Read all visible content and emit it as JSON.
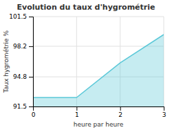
{
  "chart_data": {
    "type": "area",
    "title": "Evolution du taux d'hygrométrie",
    "x_label": "heure par heure",
    "y_label": "Taux hygrométrie %",
    "x": [
      0,
      1,
      2,
      3
    ],
    "values": [
      92.5,
      92.5,
      96.35,
      99.5
    ],
    "color": "#5bc8d8",
    "xlim": [
      0,
      3
    ],
    "ylim": [
      91.5,
      101.5
    ],
    "xticks": [
      0,
      1,
      2,
      3
    ],
    "yticks": [
      91.5,
      94.8,
      98.2,
      101.5
    ],
    "grid": true
  }
}
